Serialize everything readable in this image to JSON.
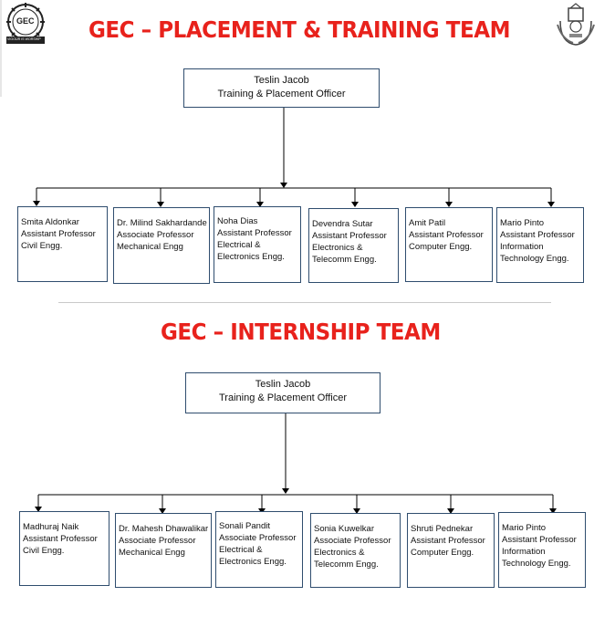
{
  "placement": {
    "title": "GEC – PLACEMENT & TRAINING TEAM",
    "head": {
      "name": "Teslin Jacob",
      "role": "Training & Placement Officer"
    },
    "members": [
      {
        "name": "Smita Aldonkar",
        "role": "Assistant Professor",
        "dept": "Civil Engg."
      },
      {
        "name": "Dr. Milind Sakhardande",
        "role": "Associate Professor",
        "dept": "Mechanical Engg"
      },
      {
        "name": "Noha Dias",
        "role": "Assistant Professor",
        "dept1": "Electrical &",
        "dept2": "Electronics Engg."
      },
      {
        "name": "Devendra Sutar",
        "role": "Assistant Professor",
        "dept1": "Electronics &",
        "dept2": "Telecomm Engg."
      },
      {
        "name": "Amit Patil",
        "role": "Assistant Professor",
        "dept": "Computer Engg."
      },
      {
        "name": "Mario Pinto",
        "role": "Assistant Professor",
        "dept1": "Information",
        "dept2": "Technology Engg."
      }
    ]
  },
  "internship": {
    "title": "GEC – INTERNSHIP TEAM",
    "head": {
      "name": "Teslin Jacob",
      "role": "Training & Placement Officer"
    },
    "members": [
      {
        "name": "Madhuraj Naik",
        "role": "Assistant Professor",
        "dept": "Civil Engg."
      },
      {
        "name": "Dr. Mahesh Dhawalikar",
        "role": "Associate Professor",
        "dept": "Mechanical Engg"
      },
      {
        "name": "Sonali Pandit",
        "role": "Associate Professor",
        "dept1": "Electrical &",
        "dept2": "Electronics Engg."
      },
      {
        "name": "Sonia Kuwelkar",
        "role": "Associate Professor",
        "dept1": "Electronics &",
        "dept2": "Telecomm Engg."
      },
      {
        "name": "Shruti Pednekar",
        "role": "Assistant Professor",
        "dept": "Computer Engg."
      },
      {
        "name": "Mario Pinto",
        "role": "Assistant Professor",
        "dept1": "Information",
        "dept2": "Technology Engg."
      }
    ]
  },
  "logos": {
    "left_text": "GEC",
    "left_motto": "VIGOUR IS WORSHIP",
    "left_icon": "gec-logo-icon",
    "right_icon": "goa-emblem-icon"
  },
  "colors": {
    "title": "#e8221c",
    "box_border": "#2f4d6e",
    "line": "#000000"
  }
}
